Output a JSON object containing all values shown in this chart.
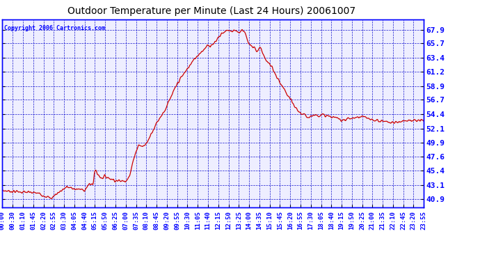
{
  "title": "Outdoor Temperature per Minute (Last 24 Hours) 20061007",
  "copyright": "Copyright 2006 Cartronics.com",
  "background_color": "#FFFFFF",
  "plot_bg_color": "#EEEEFF",
  "grid_color": "#0000CC",
  "line_color": "#CC0000",
  "title_color": "#000000",
  "yticks": [
    40.9,
    43.1,
    45.4,
    47.6,
    49.9,
    52.1,
    54.4,
    56.7,
    58.9,
    61.2,
    63.4,
    65.7,
    67.9
  ],
  "ylim": [
    39.5,
    69.5
  ],
  "xtick_labels": [
    "00:00",
    "00:30",
    "01:10",
    "01:45",
    "02:20",
    "02:55",
    "03:30",
    "04:05",
    "04:40",
    "05:15",
    "05:50",
    "06:25",
    "07:00",
    "07:35",
    "08:10",
    "08:45",
    "09:20",
    "09:55",
    "10:30",
    "11:05",
    "11:40",
    "12:15",
    "12:50",
    "13:25",
    "14:00",
    "14:35",
    "15:10",
    "15:45",
    "16:20",
    "16:55",
    "17:30",
    "18:05",
    "18:40",
    "19:15",
    "19:50",
    "20:25",
    "21:00",
    "21:35",
    "22:10",
    "22:45",
    "23:20",
    "23:55"
  ],
  "n_points": 1440,
  "temp_keypoints": [
    [
      0,
      42.2
    ],
    [
      60,
      42.0
    ],
    [
      120,
      41.8
    ],
    [
      150,
      41.3
    ],
    [
      165,
      40.9
    ],
    [
      180,
      41.5
    ],
    [
      200,
      42.2
    ],
    [
      220,
      42.8
    ],
    [
      240,
      42.5
    ],
    [
      260,
      42.4
    ],
    [
      280,
      42.3
    ],
    [
      295,
      43.1
    ],
    [
      310,
      43.3
    ],
    [
      315,
      45.2
    ],
    [
      320,
      45.5
    ],
    [
      325,
      44.8
    ],
    [
      330,
      44.6
    ],
    [
      340,
      44.2
    ],
    [
      350,
      44.5
    ],
    [
      360,
      44.3
    ],
    [
      375,
      44.0
    ],
    [
      390,
      43.8
    ],
    [
      405,
      43.7
    ],
    [
      420,
      43.8
    ],
    [
      435,
      44.5
    ],
    [
      450,
      47.6
    ],
    [
      465,
      49.5
    ],
    [
      480,
      49.2
    ],
    [
      495,
      49.9
    ],
    [
      510,
      51.5
    ],
    [
      525,
      52.8
    ],
    [
      540,
      54.0
    ],
    [
      555,
      55.0
    ],
    [
      570,
      56.5
    ],
    [
      585,
      58.0
    ],
    [
      600,
      59.5
    ],
    [
      615,
      60.5
    ],
    [
      630,
      61.5
    ],
    [
      645,
      62.5
    ],
    [
      660,
      63.4
    ],
    [
      675,
      64.2
    ],
    [
      690,
      64.8
    ],
    [
      700,
      65.5
    ],
    [
      710,
      65.0
    ],
    [
      720,
      65.7
    ],
    [
      730,
      66.2
    ],
    [
      740,
      66.8
    ],
    [
      750,
      67.3
    ],
    [
      760,
      67.5
    ],
    [
      770,
      67.9
    ],
    [
      780,
      67.6
    ],
    [
      790,
      67.8
    ],
    [
      800,
      67.7
    ],
    [
      810,
      67.4
    ],
    [
      820,
      67.9
    ],
    [
      830,
      67.5
    ],
    [
      840,
      65.7
    ],
    [
      850,
      65.2
    ],
    [
      860,
      65.0
    ],
    [
      870,
      64.5
    ],
    [
      880,
      65.1
    ],
    [
      890,
      64.2
    ],
    [
      900,
      63.0
    ],
    [
      920,
      62.0
    ],
    [
      940,
      60.0
    ],
    [
      960,
      58.5
    ],
    [
      980,
      57.0
    ],
    [
      1000,
      55.5
    ],
    [
      1020,
      54.5
    ],
    [
      1040,
      54.0
    ],
    [
      1060,
      54.2
    ],
    [
      1080,
      54.3
    ],
    [
      1100,
      54.2
    ],
    [
      1120,
      54.0
    ],
    [
      1140,
      53.8
    ],
    [
      1160,
      53.5
    ],
    [
      1200,
      53.8
    ],
    [
      1230,
      54.0
    ],
    [
      1260,
      53.5
    ],
    [
      1300,
      53.3
    ],
    [
      1340,
      53.0
    ],
    [
      1380,
      53.5
    ],
    [
      1410,
      53.3
    ],
    [
      1440,
      53.4
    ]
  ]
}
